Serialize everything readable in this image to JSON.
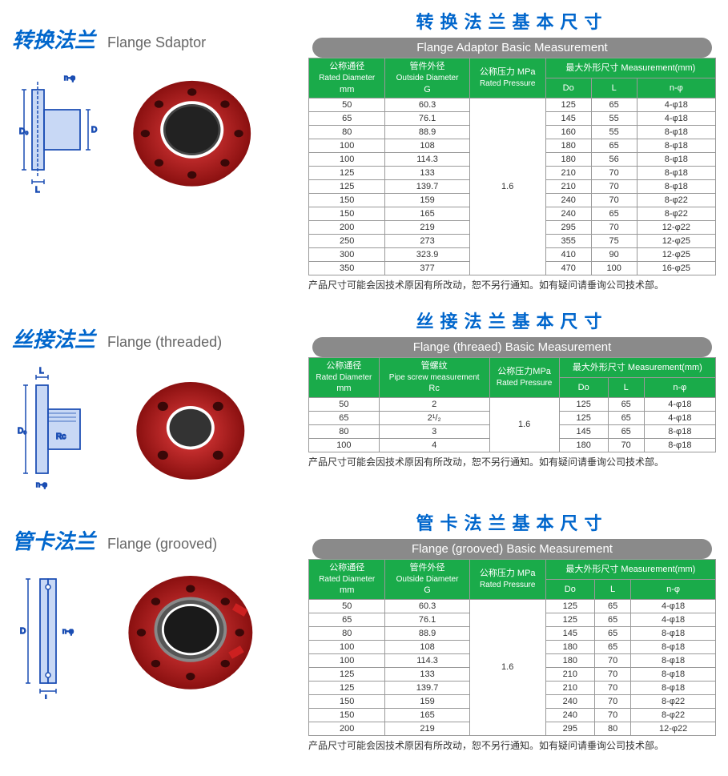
{
  "colors": {
    "title_blue": "#0066cc",
    "header_green": "#1aab4a",
    "banner_grey": "#8a8a8a",
    "flange_red": "#cc2020",
    "diagram_blue": "#1a4db3",
    "border": "#999999"
  },
  "footnote": "产品尺寸可能会因技术原因有所改动，恕不另行通知。如有疑问请垂询公司技术部。",
  "sections": [
    {
      "key": "adaptor",
      "title_cn": "转换法兰",
      "title_en": "Flange Sdaptor",
      "table_title_cn": "转换法兰基本尺寸",
      "table_title_en": "Flange Adaptor Basic Measurement",
      "headers": {
        "c1_cn": "公称通径",
        "c1_en": "Rated Diameter",
        "c1_unit": "mm",
        "c2_cn": "管件外径",
        "c2_en": "Outside Diameter",
        "c2_unit": "G",
        "c3_cn": "公称压力 MPa",
        "c3_en": "Rated Pressure",
        "c4_cn": "最大外形尺寸 Measurement(mm)",
        "c4a": "Do",
        "c4b": "L",
        "c4c": "n-φ"
      },
      "pressure": "1.6",
      "rows": [
        {
          "d": "50",
          "g": "60.3",
          "do": "125",
          "l": "65",
          "n": "4-φ18"
        },
        {
          "d": "65",
          "g": "76.1",
          "do": "145",
          "l": "55",
          "n": "4-φ18"
        },
        {
          "d": "80",
          "g": "88.9",
          "do": "160",
          "l": "55",
          "n": "8-φ18"
        },
        {
          "d": "100",
          "g": "108",
          "do": "180",
          "l": "65",
          "n": "8-φ18"
        },
        {
          "d": "100",
          "g": "114.3",
          "do": "180",
          "l": "56",
          "n": "8-φ18"
        },
        {
          "d": "125",
          "g": "133",
          "do": "210",
          "l": "70",
          "n": "8-φ18"
        },
        {
          "d": "125",
          "g": "139.7",
          "do": "210",
          "l": "70",
          "n": "8-φ18"
        },
        {
          "d": "150",
          "g": "159",
          "do": "240",
          "l": "70",
          "n": "8-φ22"
        },
        {
          "d": "150",
          "g": "165",
          "do": "240",
          "l": "65",
          "n": "8-φ22"
        },
        {
          "d": "200",
          "g": "219",
          "do": "295",
          "l": "70",
          "n": "12-φ22"
        },
        {
          "d": "250",
          "g": "273",
          "do": "355",
          "l": "75",
          "n": "12-φ25"
        },
        {
          "d": "300",
          "g": "323.9",
          "do": "410",
          "l": "90",
          "n": "12-φ25"
        },
        {
          "d": "350",
          "g": "377",
          "do": "470",
          "l": "100",
          "n": "16-φ25"
        }
      ]
    },
    {
      "key": "threaded",
      "title_cn": "丝接法兰",
      "title_en": "Flange (threaded)",
      "table_title_cn": "丝接法兰基本尺寸",
      "table_title_en": "Flange (threaed) Basic Measurement",
      "headers": {
        "c1_cn": "公称通径",
        "c1_en": "Rated Diameter",
        "c1_unit": "mm",
        "c2_cn": "管螺纹",
        "c2_en": "Pipe screw measurement",
        "c2_unit": "Rc",
        "c3_cn": "公称压力MPa",
        "c3_en": "Rated Pressure",
        "c4_cn": "最大外形尺寸 Measurement(mm)",
        "c4a": "Do",
        "c4b": "L",
        "c4c": "n-φ"
      },
      "pressure": "1.6",
      "rows": [
        {
          "d": "50",
          "g": "2",
          "do": "125",
          "l": "65",
          "n": "4-φ18"
        },
        {
          "d": "65",
          "g": "2¹/₂",
          "do": "125",
          "l": "65",
          "n": "4-φ18"
        },
        {
          "d": "80",
          "g": "3",
          "do": "145",
          "l": "65",
          "n": "8-φ18"
        },
        {
          "d": "100",
          "g": "4",
          "do": "180",
          "l": "70",
          "n": "8-φ18"
        }
      ]
    },
    {
      "key": "grooved",
      "title_cn": "管卡法兰",
      "title_en": "Flange (grooved)",
      "table_title_cn": "管卡法兰基本尺寸",
      "table_title_en": "Flange (grooved) Basic Measurement",
      "headers": {
        "c1_cn": "公称通径",
        "c1_en": "Rated Diameter",
        "c1_unit": "mm",
        "c2_cn": "管件外径",
        "c2_en": "Outside Diameter",
        "c2_unit": "G",
        "c3_cn": "公称压力 MPa",
        "c3_en": "Rated Pressure",
        "c4_cn": "最大外形尺寸  Measurement(mm)",
        "c4a": "Do",
        "c4b": "L",
        "c4c": "n-φ"
      },
      "pressure": "1.6",
      "rows": [
        {
          "d": "50",
          "g": "60.3",
          "do": "125",
          "l": "65",
          "n": "4-φ18"
        },
        {
          "d": "65",
          "g": "76.1",
          "do": "125",
          "l": "65",
          "n": "4-φ18"
        },
        {
          "d": "80",
          "g": "88.9",
          "do": "145",
          "l": "65",
          "n": "8-φ18"
        },
        {
          "d": "100",
          "g": "108",
          "do": "180",
          "l": "65",
          "n": "8-φ18"
        },
        {
          "d": "100",
          "g": "114.3",
          "do": "180",
          "l": "70",
          "n": "8-φ18"
        },
        {
          "d": "125",
          "g": "133",
          "do": "210",
          "l": "70",
          "n": "8-φ18"
        },
        {
          "d": "125",
          "g": "139.7",
          "do": "210",
          "l": "70",
          "n": "8-φ18"
        },
        {
          "d": "150",
          "g": "159",
          "do": "240",
          "l": "70",
          "n": "8-φ22"
        },
        {
          "d": "150",
          "g": "165",
          "do": "240",
          "l": "70",
          "n": "8-φ22"
        },
        {
          "d": "200",
          "g": "219",
          "do": "295",
          "l": "80",
          "n": "12-φ22"
        }
      ]
    }
  ]
}
